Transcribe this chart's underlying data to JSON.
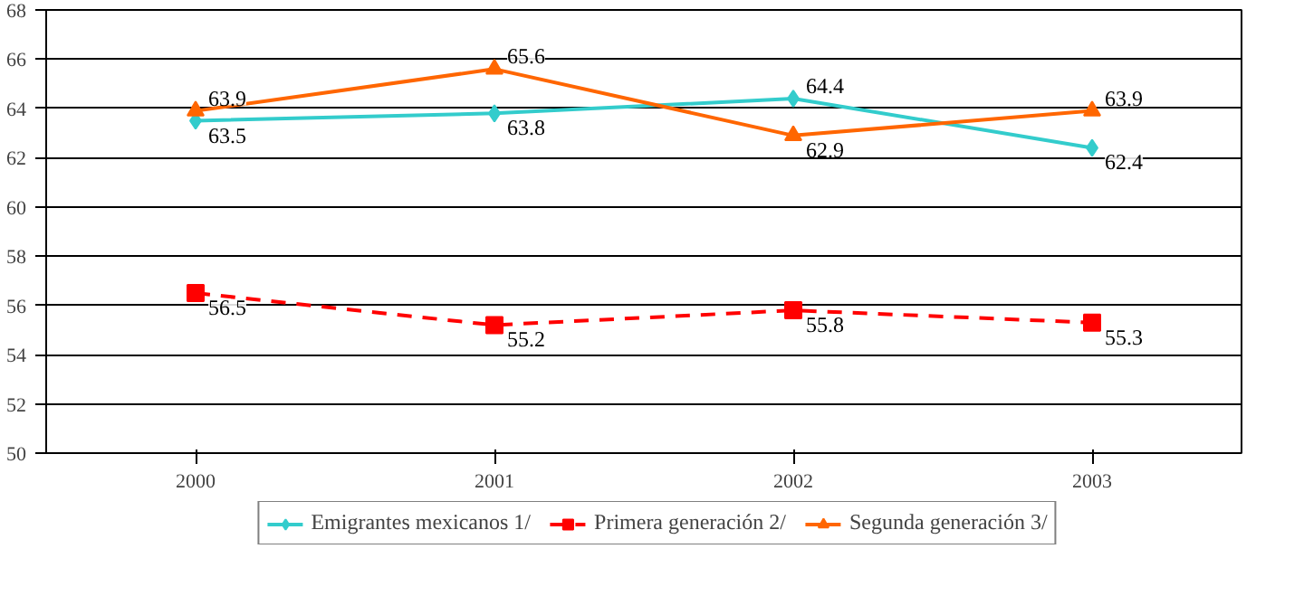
{
  "chart_data": {
    "type": "line",
    "categories": [
      "2000",
      "2001",
      "2002",
      "2003"
    ],
    "ylim": [
      50,
      68
    ],
    "yticks": [
      50,
      52,
      54,
      56,
      58,
      60,
      62,
      64,
      66,
      68
    ],
    "grid": "y",
    "legend": "bottom",
    "data_labels": true,
    "series": [
      {
        "name": "Emigrantes mexicanos 1/",
        "color": "#33cccc",
        "values": [
          63.5,
          63.8,
          64.4,
          62.4
        ],
        "marker": "diamond",
        "line_style": "solid"
      },
      {
        "name": "Primera generación 2/",
        "color": "#ff0000",
        "values": [
          56.5,
          55.2,
          55.8,
          55.3
        ],
        "marker": "square",
        "line_style": "dashed"
      },
      {
        "name": "Segunda generación 3/",
        "color": "#ff6600",
        "values": [
          63.9,
          65.6,
          62.9,
          63.9
        ],
        "marker": "triangle",
        "line_style": "solid"
      }
    ]
  }
}
